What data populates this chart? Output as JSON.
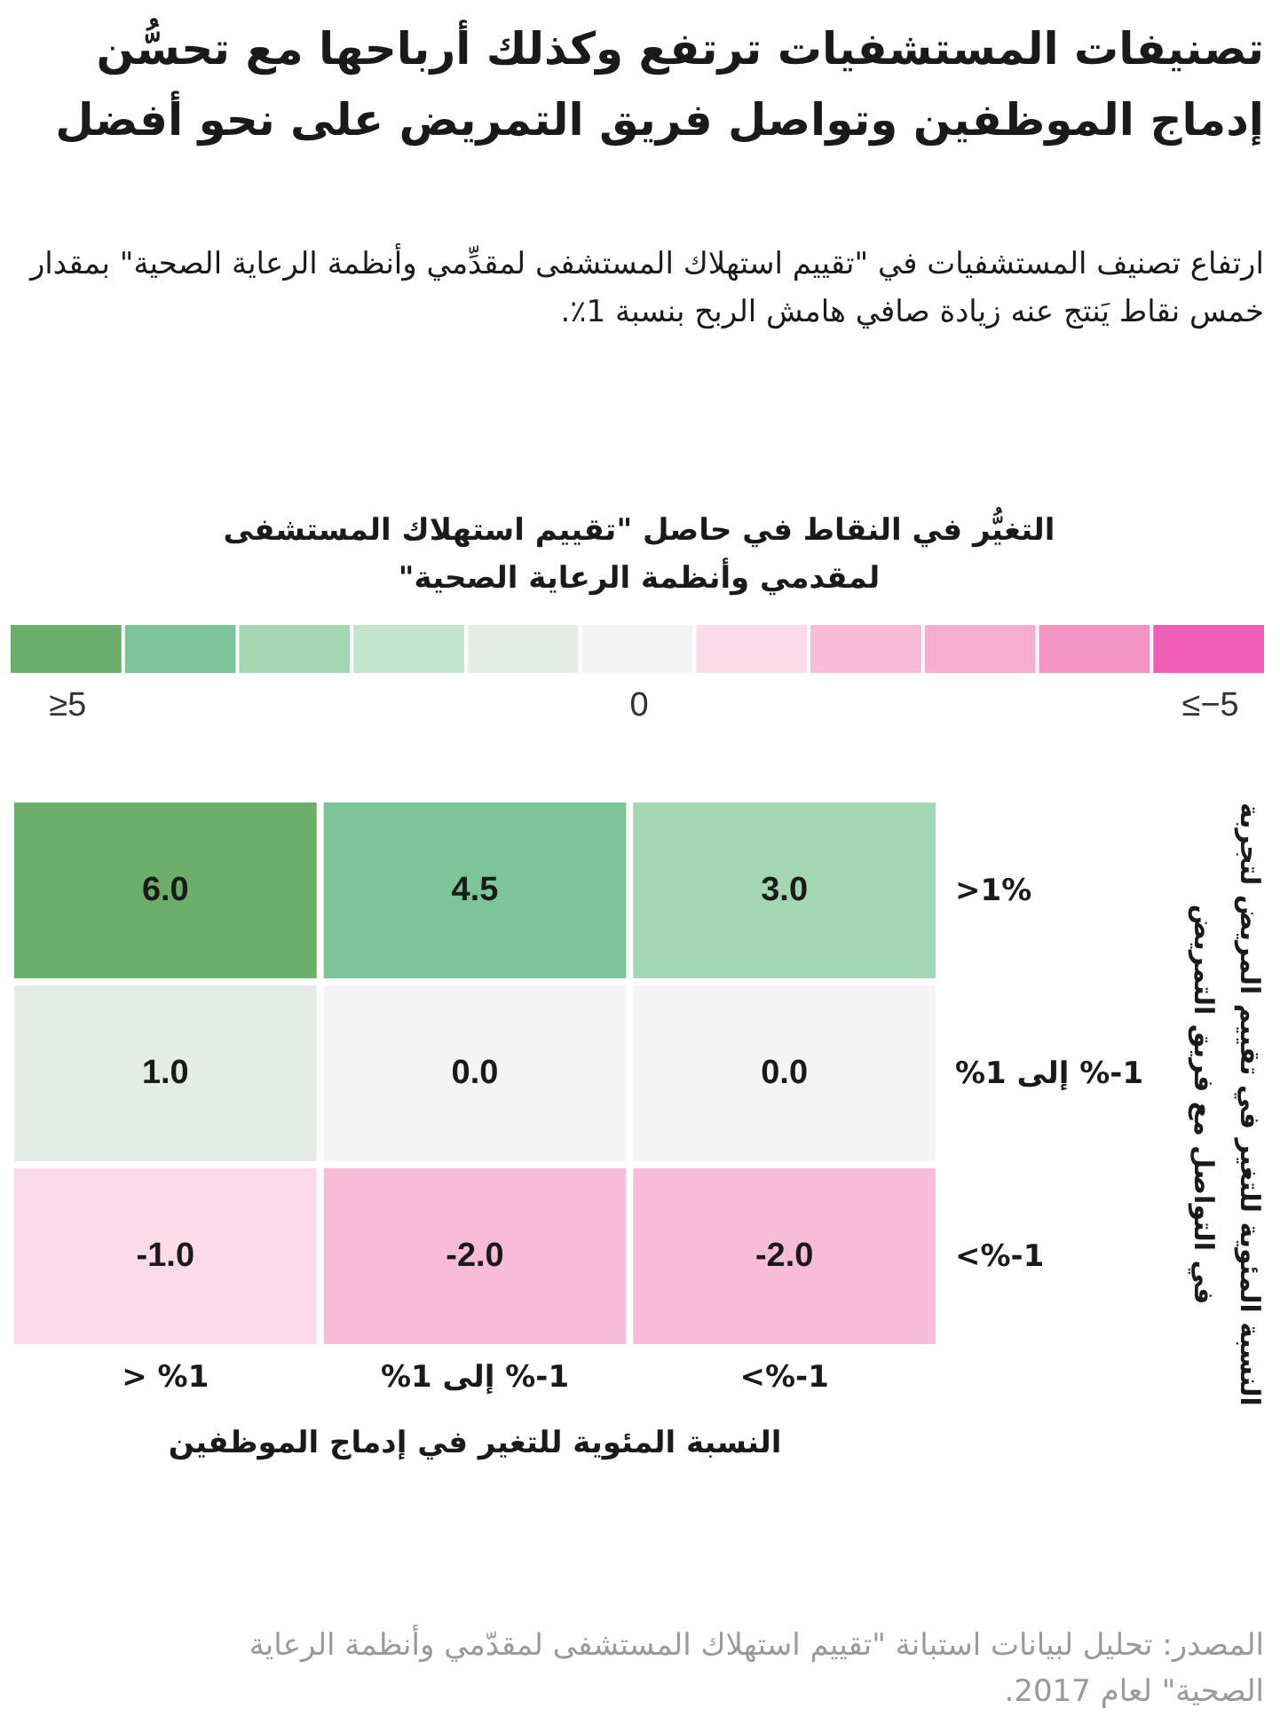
{
  "chart_data": {
    "type": "heatmap",
    "title": "تصنيفات المستشفيات ترتفع وكذلك أرباحها مع تحسُّن إدماج الموظفين وتواصل فريق التمريض على نحو أفضل",
    "subtitle": "ارتفاع تصنيف المستشفيات في \"تقييم استهلاك المستشفى لمقدِّمي وأنظمة الرعاية الصحية\" بمقدار خمس نقاط يَنتج عنه زيادة صافي هامش الربح بنسبة 1٪.",
    "clabel": "التغيُّر في النقاط في حاصل \"تقييم استهلاك المستشفى لمقدمي وأنظمة الرعاية الصحية\"",
    "colors": [
      "#6aae6a",
      "#7cc49a",
      "#a5d6b3",
      "#c4e3cc",
      "#e4ece6",
      "#f4f4f4",
      "#fbdbe8",
      "#f8bcd8",
      "#f6aed0",
      "#f394c3",
      "#ef5fb5"
    ],
    "clim": [
      5.5,
      -5.5
    ],
    "cticks": [
      {
        "value": 5,
        "label": "≥5"
      },
      0,
      {
        "value": -5,
        "label": "≤−5"
      }
    ],
    "categories": [
      "> %1",
      "1-% إلى 1%",
      "<%-1"
    ],
    "y_categories": [
      ">1%",
      "1-% إلى 1%",
      "<%-1"
    ],
    "cells": [
      [
        6.0,
        4.5,
        3.0
      ],
      [
        1.0,
        0.0,
        0.0
      ],
      [
        -1.0,
        -2.0,
        -2.0
      ]
    ],
    "cell_labels": [
      [
        "6.0",
        "4.5",
        "3.0"
      ],
      [
        "1.0",
        "0.0",
        "0.0"
      ],
      [
        "-1.0",
        "-2.0",
        "-2.0"
      ]
    ],
    "xlabel": "النسبة المئوية للتغير في إدماج الموظفين",
    "ylabel": "النسبة المئوية للتغير في تقييم المريض لتجربة في التواصل مع فريق التمريض",
    "annotations": [
      "المصدر: تحليل لبيانات استبانة \"تقييم استهلاك المستشفى لمقدّمي وأنظمة الرعاية الصحية\" لعام 2017."
    ]
  }
}
